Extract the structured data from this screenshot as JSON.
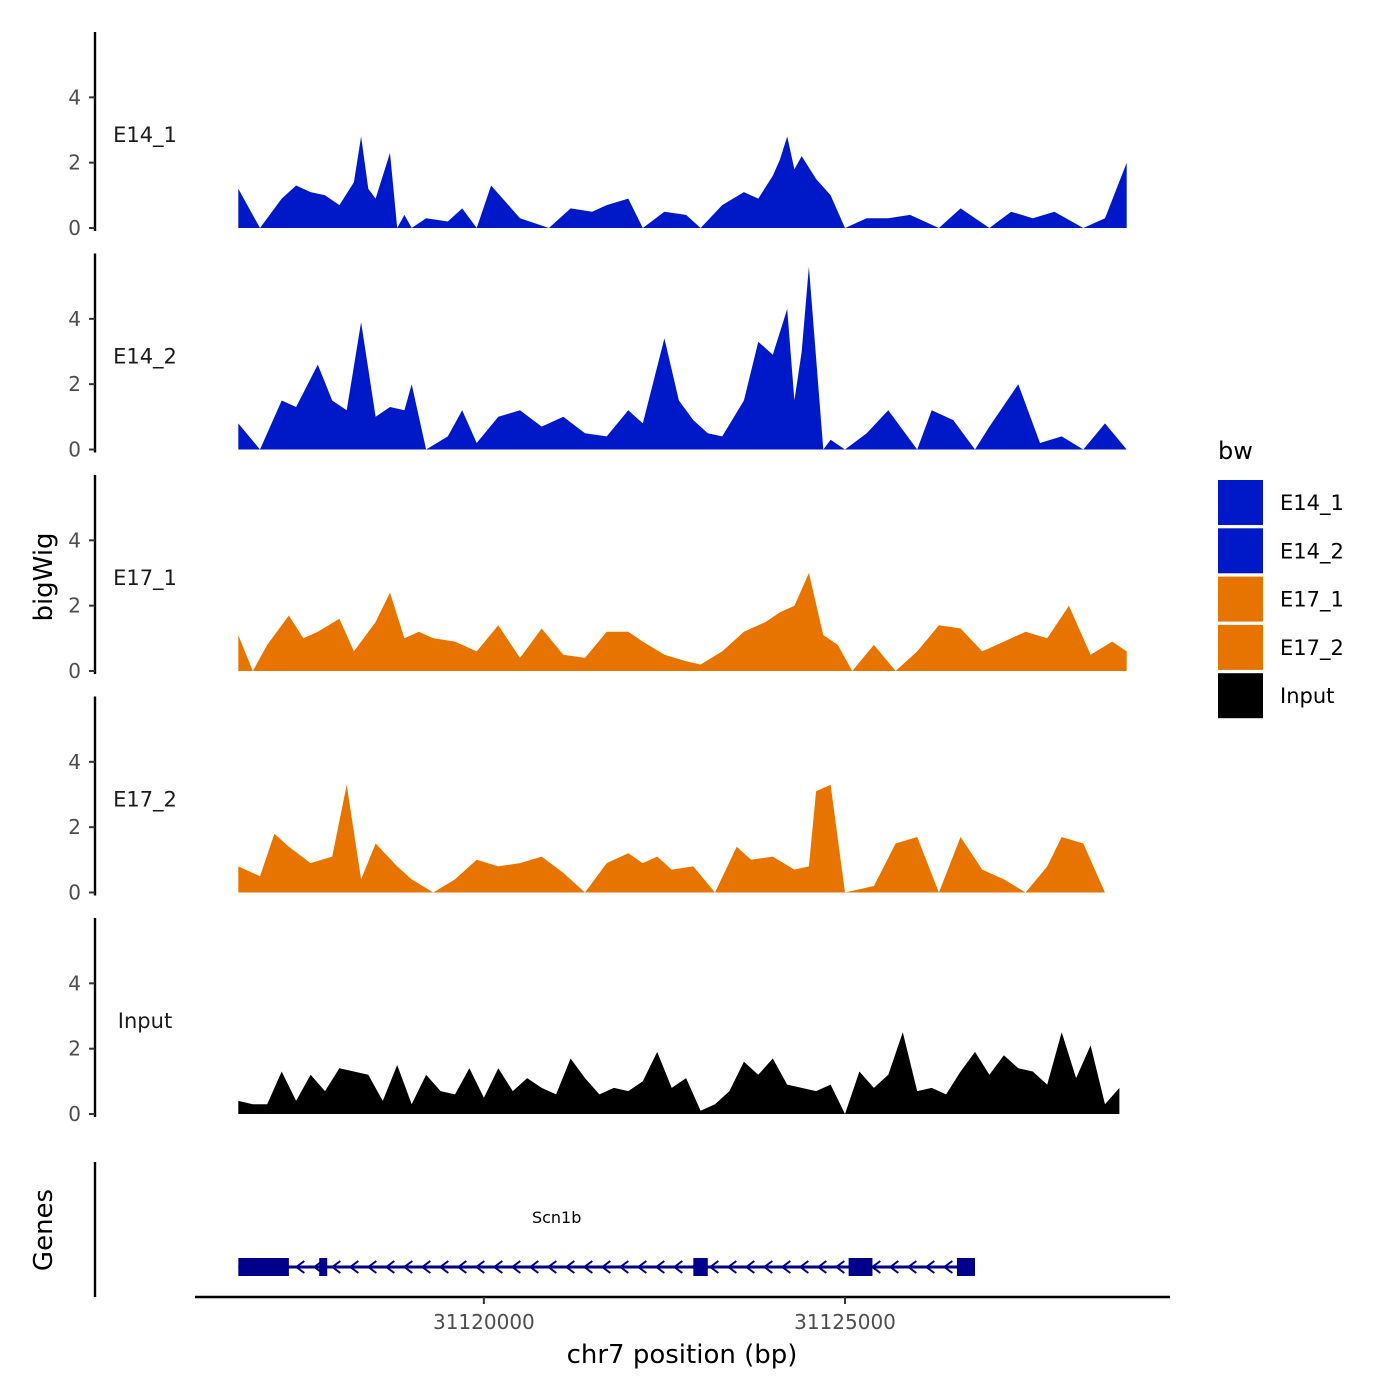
{
  "chart_data": {
    "type": "area",
    "title": "",
    "xlabel": "chr7 position (bp)",
    "ylabel": "bigWig",
    "genes_label": "Genes",
    "chromosome": "chr7",
    "xlim": [
      31116000,
      31129500
    ],
    "ylim": [
      0,
      6
    ],
    "x_ticks": [
      31120000,
      31125000
    ],
    "y_ticks": [
      0,
      2,
      4
    ],
    "legend": {
      "title": "bw",
      "placement": "right",
      "entries": [
        {
          "label": "E14_1",
          "color": "#0019C8"
        },
        {
          "label": "E14_2",
          "color": "#0019C8"
        },
        {
          "label": "E17_1",
          "color": "#E87400"
        },
        {
          "label": "E17_2",
          "color": "#E87400"
        },
        {
          "label": "Input",
          "color": "#000000"
        }
      ]
    },
    "series": [
      {
        "name": "E14_1",
        "color": "#0019C8",
        "x": [
          31116600,
          31116900,
          31117200,
          31117400,
          31117600,
          31117800,
          31118000,
          31118200,
          31118300,
          31118400,
          31118500,
          31118600,
          31118700,
          31118800,
          31118900,
          31119000,
          31119200,
          31119500,
          31119700,
          31119900,
          31120100,
          31120500,
          31120900,
          31121200,
          31121500,
          31121700,
          31122000,
          31122200,
          31122500,
          31122800,
          31123000,
          31123300,
          31123600,
          31123800,
          31124000,
          31124100,
          31124200,
          31124300,
          31124400,
          31124600,
          31124800,
          31125000,
          31125300,
          31125600,
          31125900,
          31126300,
          31126600,
          31127000,
          31127300,
          31127600,
          31127900,
          31128300,
          31128600,
          31128900
        ],
        "values": [
          1.2,
          0,
          0.9,
          1.3,
          1.1,
          1.0,
          0.7,
          1.4,
          2.8,
          1.2,
          0.9,
          1.6,
          2.3,
          0,
          0.4,
          0,
          0.3,
          0.2,
          0.6,
          0,
          1.3,
          0.3,
          0,
          0.6,
          0.5,
          0.7,
          0.9,
          0,
          0.5,
          0.4,
          0,
          0.7,
          1.1,
          0.9,
          1.6,
          2.1,
          2.8,
          1.8,
          2.2,
          1.5,
          1.0,
          0,
          0.3,
          0.3,
          0.4,
          0,
          0.6,
          0,
          0.5,
          0.3,
          0.5,
          0,
          0.3,
          2.0
        ]
      },
      {
        "name": "E14_2",
        "color": "#0019C8",
        "x": [
          31116600,
          31116900,
          31117200,
          31117400,
          31117700,
          31117900,
          31118100,
          31118300,
          31118500,
          31118700,
          31118900,
          31119000,
          31119200,
          31119500,
          31119700,
          31119900,
          31120200,
          31120500,
          31120800,
          31121100,
          31121400,
          31121700,
          31122000,
          31122200,
          31122500,
          31122700,
          31122900,
          31123100,
          31123300,
          31123600,
          31123800,
          31124000,
          31124200,
          31124300,
          31124400,
          31124500,
          31124700,
          31124800,
          31125000,
          31125300,
          31125600,
          31126000,
          31126200,
          31126500,
          31126800,
          31127000,
          31127400,
          31127700,
          31128000,
          31128300,
          31128600,
          31128900
        ],
        "values": [
          0.8,
          0,
          1.5,
          1.3,
          2.6,
          1.5,
          1.2,
          3.9,
          1.0,
          1.3,
          1.2,
          2.0,
          0,
          0.4,
          1.2,
          0.2,
          1.0,
          1.2,
          0.7,
          1.0,
          0.5,
          0.4,
          1.2,
          0.8,
          3.4,
          1.5,
          0.9,
          0.5,
          0.4,
          1.5,
          3.3,
          2.9,
          4.3,
          1.5,
          3.0,
          5.6,
          0,
          0.3,
          0,
          0.5,
          1.2,
          0,
          1.2,
          0.9,
          0,
          0.7,
          2.0,
          0.2,
          0.4,
          0,
          0.8,
          0
        ]
      },
      {
        "name": "E17_1",
        "color": "#E87400",
        "x": [
          31116600,
          31116800,
          31117000,
          31117300,
          31117500,
          31117700,
          31118000,
          31118200,
          31118500,
          31118700,
          31118900,
          31119100,
          31119300,
          31119600,
          31119900,
          31120200,
          31120500,
          31120800,
          31121100,
          31121400,
          31121700,
          31122000,
          31122200,
          31122500,
          31122800,
          31123000,
          31123300,
          31123600,
          31123900,
          31124100,
          31124300,
          31124500,
          31124700,
          31124900,
          31125100,
          31125400,
          31125700,
          31126000,
          31126300,
          31126600,
          31126900,
          31127200,
          31127500,
          31127800,
          31128100,
          31128400,
          31128700,
          31128900
        ],
        "values": [
          1.1,
          0,
          0.8,
          1.7,
          1.0,
          1.2,
          1.6,
          0.6,
          1.5,
          2.4,
          1.0,
          1.2,
          1.0,
          0.9,
          0.6,
          1.4,
          0.4,
          1.3,
          0.5,
          0.4,
          1.2,
          1.2,
          0.9,
          0.5,
          0.3,
          0.2,
          0.6,
          1.2,
          1.5,
          1.8,
          2.0,
          3.0,
          1.1,
          0.8,
          0,
          0.8,
          0,
          0.6,
          1.4,
          1.3,
          0.6,
          0.9,
          1.2,
          1.0,
          2.0,
          0.5,
          0.9,
          0.6
        ]
      },
      {
        "name": "E17_2",
        "color": "#E87400",
        "x": [
          31116600,
          31116900,
          31117100,
          31117300,
          31117600,
          31117900,
          31118100,
          31118300,
          31118500,
          31118800,
          31119000,
          31119300,
          31119600,
          31119900,
          31120200,
          31120500,
          31120800,
          31121100,
          31121400,
          31121700,
          31122000,
          31122200,
          31122400,
          31122600,
          31122900,
          31123200,
          31123500,
          31123700,
          31124000,
          31124300,
          31124500,
          31124600,
          31124800,
          31125000,
          31125400,
          31125700,
          31126000,
          31126300,
          31126600,
          31126900,
          31127200,
          31127500,
          31127800,
          31128000,
          31128300,
          31128600
        ],
        "values": [
          0.8,
          0.5,
          1.8,
          1.4,
          0.9,
          1.1,
          3.3,
          0.4,
          1.5,
          0.8,
          0.4,
          0,
          0.4,
          1.0,
          0.8,
          0.9,
          1.1,
          0.6,
          0,
          0.9,
          1.2,
          0.9,
          1.1,
          0.7,
          0.8,
          0,
          1.4,
          1.0,
          1.1,
          0.7,
          0.8,
          3.1,
          3.3,
          0,
          0.2,
          1.5,
          1.7,
          0,
          1.7,
          0.7,
          0.4,
          0,
          0.8,
          1.7,
          1.5,
          0
        ]
      },
      {
        "name": "Input",
        "color": "#000000",
        "x": [
          31116600,
          31116800,
          31117000,
          31117200,
          31117400,
          31117600,
          31117800,
          31118000,
          31118200,
          31118400,
          31118600,
          31118800,
          31119000,
          31119200,
          31119400,
          31119600,
          31119800,
          31120000,
          31120200,
          31120400,
          31120600,
          31120800,
          31121000,
          31121200,
          31121400,
          31121600,
          31121800,
          31122000,
          31122200,
          31122400,
          31122600,
          31122800,
          31123000,
          31123200,
          31123400,
          31123600,
          31123800,
          31124000,
          31124200,
          31124400,
          31124600,
          31124800,
          31125000,
          31125200,
          31125400,
          31125600,
          31125800,
          31126000,
          31126200,
          31126400,
          31126600,
          31126800,
          31127000,
          31127200,
          31127400,
          31127600,
          31127800,
          31128000,
          31128200,
          31128400,
          31128600,
          31128800
        ],
        "values": [
          0.4,
          0.3,
          0.3,
          1.3,
          0.4,
          1.2,
          0.7,
          1.4,
          1.3,
          1.2,
          0.4,
          1.5,
          0.3,
          1.2,
          0.7,
          0.6,
          1.4,
          0.5,
          1.4,
          0.7,
          1.1,
          0.8,
          0.6,
          1.7,
          1.1,
          0.6,
          0.8,
          0.7,
          1.0,
          1.9,
          0.8,
          1.1,
          0.1,
          0.3,
          0.7,
          1.6,
          1.2,
          1.7,
          0.9,
          0.8,
          0.7,
          0.9,
          0,
          1.3,
          0.8,
          1.2,
          2.5,
          0.7,
          0.8,
          0.6,
          1.3,
          1.9,
          1.2,
          1.8,
          1.4,
          1.3,
          0.9,
          2.5,
          1.1,
          2.1,
          0.3,
          0.8
        ]
      }
    ],
    "genes": [
      {
        "name": "Scn1b",
        "strand": "-",
        "start": 31116600,
        "end": 31126800,
        "exons": [
          {
            "start": 31116600,
            "end": 31117300
          },
          {
            "start": 31117720,
            "end": 31117820
          },
          {
            "start": 31122900,
            "end": 31123100
          },
          {
            "start": 31125050,
            "end": 31125380
          },
          {
            "start": 31126550,
            "end": 31126800
          }
        ]
      }
    ]
  }
}
